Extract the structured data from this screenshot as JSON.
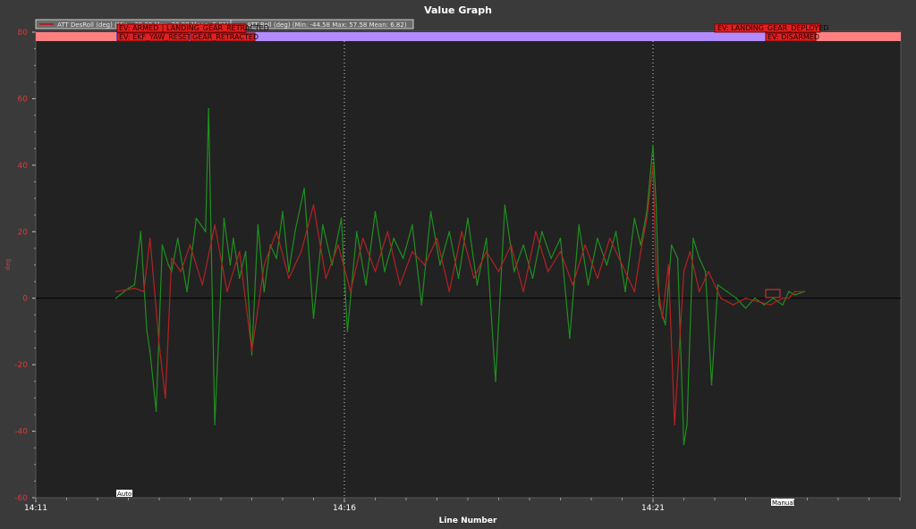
{
  "window": {
    "title": "Value Graph"
  },
  "legend": [
    {
      "label": "ATT DesRoll (deg) (Min: -39.00 Max: 39.99 Mean: 5.01)",
      "color": "#b22222"
    },
    {
      "label": "ATT Roll (deg) (Min: -44.58 Max: 57.58 Mean: 6.82)",
      "color": "#1f8f1f"
    }
  ],
  "events": [
    {
      "label": "EV: ARMED",
      "row": 0
    },
    {
      "label": "LANDING_GEAR_RETRACTED",
      "row": 0
    },
    {
      "label": "EV: EKF_YAW_RESET",
      "row": 1
    },
    {
      "label": "GEAR_RETRACTED",
      "row": 1
    },
    {
      "label": "EV: LANDING_GEAR_DEPLOYED",
      "row": 0
    },
    {
      "label": "EV: DISARMED",
      "row": 1
    }
  ],
  "modes": [
    {
      "label": "Auto",
      "x": "14:12.4"
    },
    {
      "label": "Manual",
      "x": "14:23.3"
    }
  ],
  "colors": {
    "background": "#3a3a3a",
    "plot_bg": "#222222",
    "mode_band_auto": "#b28cff",
    "mode_band_other": "#ff8080",
    "desroll": "#b22222",
    "roll": "#1f8f1f"
  },
  "chart_data": {
    "type": "line",
    "title": "Value Graph",
    "xlabel": "Line Number",
    "ylabel": "deg",
    "x_ticks": [
      "14:11",
      "14:16",
      "14:21"
    ],
    "x_tick_minutes": [
      0,
      5,
      10
    ],
    "xlim_minutes": [
      0,
      14
    ],
    "y_ticks": [
      80,
      60,
      40,
      20,
      0,
      -20,
      -40,
      -60
    ],
    "ylim": [
      -60,
      80
    ],
    "grid": "vertical dotted at major ticks",
    "series": [
      {
        "name": "ATT DesRoll (deg)",
        "color": "#b22222",
        "x_minutes": [
          1.3,
          1.6,
          1.75,
          1.85,
          2.0,
          2.1,
          2.2,
          2.35,
          2.5,
          2.7,
          2.9,
          3.1,
          3.3,
          3.5,
          3.7,
          3.9,
          4.1,
          4.3,
          4.5,
          4.7,
          4.9,
          5.1,
          5.3,
          5.5,
          5.7,
          5.9,
          6.1,
          6.3,
          6.5,
          6.7,
          6.9,
          7.1,
          7.3,
          7.5,
          7.7,
          7.9,
          8.1,
          8.3,
          8.5,
          8.7,
          8.9,
          9.1,
          9.3,
          9.5,
          9.7,
          9.8,
          9.9,
          10.0,
          10.05,
          10.15,
          10.25,
          10.35,
          10.5,
          10.6,
          10.75,
          10.9,
          11.1,
          11.3,
          11.5,
          11.7,
          11.9,
          12.0,
          12.1,
          12.2,
          12.3,
          12.45
        ],
        "values": [
          2,
          3,
          2,
          18,
          -14,
          -30,
          12,
          8,
          16,
          4,
          22,
          2,
          14,
          -16,
          10,
          20,
          6,
          14,
          28,
          6,
          16,
          2,
          18,
          8,
          20,
          4,
          14,
          10,
          18,
          2,
          20,
          6,
          14,
          8,
          16,
          2,
          20,
          8,
          14,
          4,
          16,
          6,
          18,
          10,
          2,
          14,
          24,
          40,
          8,
          -6,
          10,
          -38,
          8,
          14,
          2,
          8,
          0,
          -2,
          0,
          -1,
          -2,
          -1,
          0,
          0,
          2,
          2
        ]
      },
      {
        "name": "ATT Roll (deg)",
        "color": "#1f8f1f",
        "x_minutes": [
          1.3,
          1.5,
          1.6,
          1.7,
          1.8,
          1.85,
          1.95,
          2.05,
          2.15,
          2.2,
          2.3,
          2.45,
          2.6,
          2.75,
          2.8,
          2.9,
          3.05,
          3.15,
          3.2,
          3.3,
          3.4,
          3.5,
          3.6,
          3.7,
          3.8,
          3.9,
          4.0,
          4.1,
          4.2,
          4.35,
          4.5,
          4.65,
          4.8,
          4.95,
          5.05,
          5.2,
          5.35,
          5.5,
          5.65,
          5.8,
          5.95,
          6.1,
          6.25,
          6.4,
          6.55,
          6.7,
          6.85,
          7.0,
          7.15,
          7.3,
          7.45,
          7.6,
          7.75,
          7.9,
          8.05,
          8.2,
          8.35,
          8.5,
          8.65,
          8.8,
          8.95,
          9.1,
          9.25,
          9.4,
          9.55,
          9.7,
          9.8,
          9.9,
          10.0,
          10.05,
          10.1,
          10.2,
          10.3,
          10.4,
          10.5,
          10.55,
          10.65,
          10.75,
          10.85,
          10.95,
          11.05,
          11.2,
          11.35,
          11.5,
          11.65,
          11.8,
          11.95,
          12.1,
          12.2,
          12.3,
          12.45
        ],
        "values": [
          0,
          3,
          4,
          20,
          -10,
          -16,
          -34,
          16,
          10,
          8,
          18,
          2,
          24,
          20,
          57,
          -38,
          24,
          10,
          18,
          6,
          14,
          -17,
          22,
          2,
          16,
          12,
          26,
          8,
          20,
          33,
          -6,
          22,
          10,
          24,
          -10,
          20,
          4,
          26,
          8,
          18,
          12,
          22,
          -2,
          26,
          10,
          20,
          6,
          24,
          4,
          18,
          -25,
          28,
          8,
          16,
          6,
          20,
          12,
          18,
          -12,
          22,
          4,
          18,
          10,
          20,
          2,
          24,
          16,
          26,
          46,
          28,
          -2,
          -8,
          16,
          12,
          -44,
          -38,
          18,
          12,
          8,
          -26,
          4,
          2,
          0,
          -3,
          0,
          -2,
          0,
          -2,
          2,
          1,
          2
        ]
      }
    ]
  }
}
